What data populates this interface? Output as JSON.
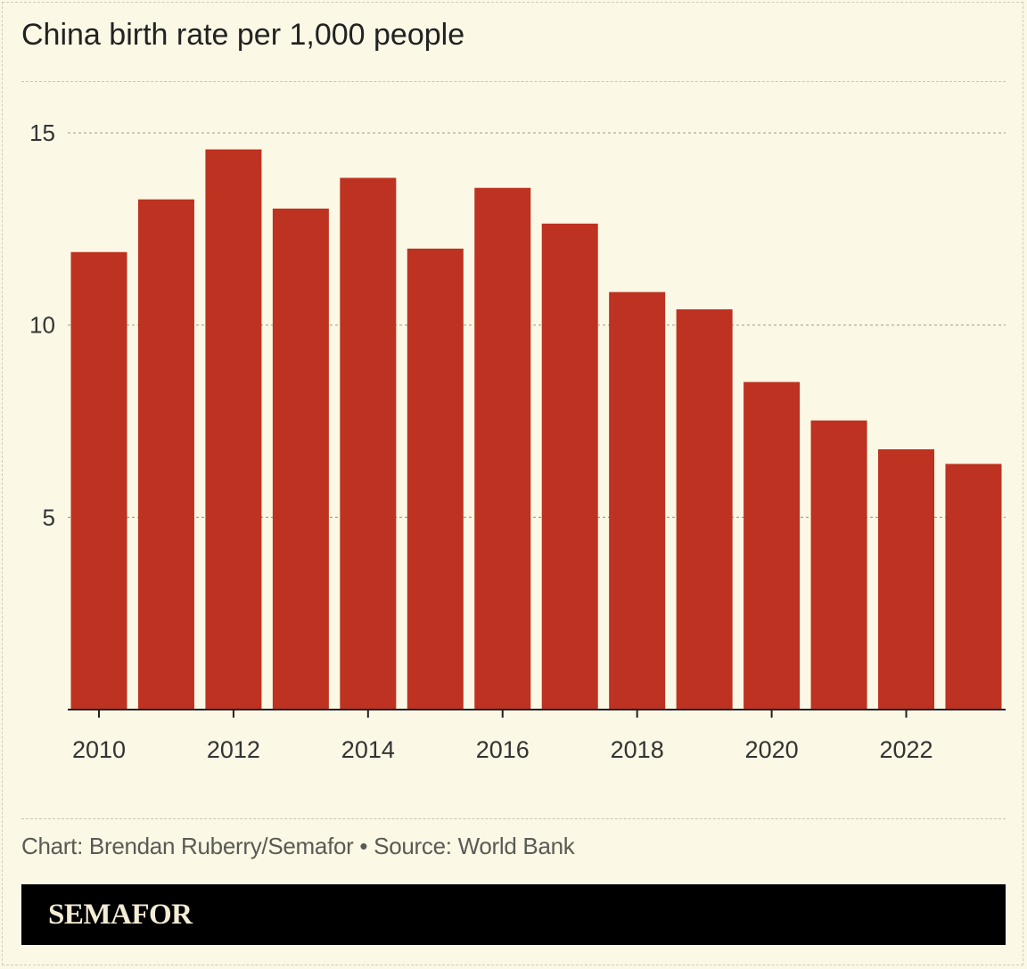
{
  "chart_data": {
    "type": "bar",
    "title": "China birth rate per 1,000 people",
    "categories": [
      "2010",
      "2011",
      "2012",
      "2013",
      "2014",
      "2015",
      "2016",
      "2017",
      "2018",
      "2019",
      "2020",
      "2021",
      "2022",
      "2023"
    ],
    "values": [
      11.9,
      13.27,
      14.57,
      13.03,
      13.83,
      11.99,
      13.57,
      12.64,
      10.86,
      10.41,
      8.52,
      7.52,
      6.77,
      6.39
    ],
    "x_tick_labels": [
      "2010",
      "2012",
      "2014",
      "2016",
      "2018",
      "2020",
      "2022"
    ],
    "y_ticks": [
      5,
      10,
      15
    ],
    "ylim": [
      0,
      15.5
    ],
    "grid": true,
    "bar_color": "#bd3221",
    "xlabel": "",
    "ylabel": ""
  },
  "footer": "Chart: Brendan Ruberry/Semafor • Source: World Bank",
  "brand": "SEMAFOR",
  "colors": {
    "background": "#fbf8e5",
    "bar": "#bd3221",
    "brand_bg": "#000000"
  }
}
